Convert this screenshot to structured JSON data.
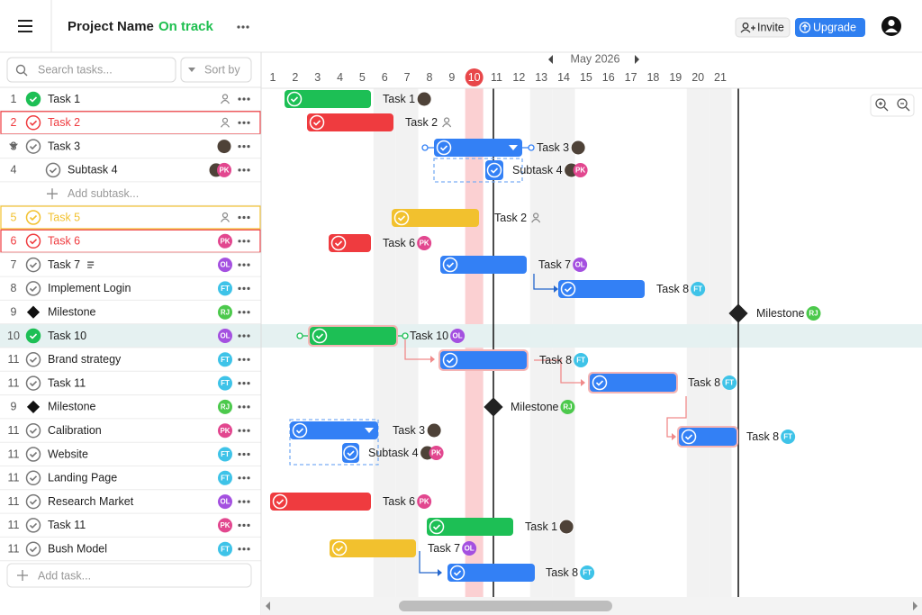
{
  "header": {
    "project_name": "Project Name",
    "status": "On track",
    "invite": "Invite",
    "upgrade": "Upgrade"
  },
  "toolbar": {
    "search_placeholder": "Search tasks...",
    "sort": "Sort by"
  },
  "tasks": [
    {
      "num": 1,
      "name": "Task 1"
    },
    {
      "num": 2,
      "name": "Task 2"
    },
    {
      "num": 3,
      "name": "Task 3"
    },
    {
      "num": 4,
      "name": "Subtask 4",
      "avatar": "PK"
    },
    {
      "name": "Add subtask..."
    },
    {
      "num": 5,
      "name": "Task 5"
    },
    {
      "num": 6,
      "name": "Task 6",
      "avatar": "PK"
    },
    {
      "num": 7,
      "name": "Task 7",
      "avatar": "OL"
    },
    {
      "num": 8,
      "name": "Implement Login",
      "avatar": "FT"
    },
    {
      "num": 9,
      "name": "Milestone",
      "avatar": "RJ"
    },
    {
      "num": 10,
      "name": "Task 10",
      "avatar": "OL"
    },
    {
      "num": 11,
      "name": "Brand strategy",
      "avatar": "FT"
    },
    {
      "num": 11,
      "name": "Task 11",
      "avatar": "FT"
    },
    {
      "num": 9,
      "name": "Milestone",
      "avatar": "RJ"
    },
    {
      "num": 11,
      "name": "Calibration",
      "avatar": "PK"
    },
    {
      "num": 11,
      "name": "Website",
      "avatar": "FT"
    },
    {
      "num": 11,
      "name": "Landing Page",
      "avatar": "FT"
    },
    {
      "num": 11,
      "name": "Research Market",
      "avatar": "OL"
    },
    {
      "num": 11,
      "name": "Task 11",
      "avatar": "PK"
    },
    {
      "num": 11,
      "name": "Bush Model",
      "avatar": "FT"
    }
  ],
  "add_task": "Add task...",
  "timeline": {
    "month": "May 2026",
    "days": [
      1,
      2,
      3,
      4,
      5,
      6,
      7,
      8,
      9,
      10,
      11,
      12,
      13,
      14,
      15,
      16,
      17,
      18,
      19,
      20,
      21
    ],
    "items": [
      {
        "label": "Task 1"
      },
      {
        "label": "Task 2"
      },
      {
        "label": "Task 3"
      },
      {
        "label": "Subtask 4",
        "avatar": "PK"
      },
      {
        "label": "Task 2"
      },
      {
        "label": "Task 6",
        "avatar": "PK"
      },
      {
        "label": "Task 7",
        "avatar": "OL"
      },
      {
        "label": "Task 8",
        "avatar": "FT"
      },
      {
        "label": "Milestone",
        "avatar": "RJ"
      },
      {
        "label": "Task 10",
        "avatar": "OL"
      },
      {
        "label": "Task 8",
        "avatar": "FT"
      },
      {
        "label": "Task 8",
        "avatar": "FT"
      },
      {
        "label": "Milestone",
        "avatar": "RJ"
      },
      {
        "label": "Task 3"
      },
      {
        "label": "Task 8",
        "avatar": "FT"
      },
      {
        "label": "Subtask 4",
        "avatar": "PK"
      },
      {
        "label": "Task 6",
        "avatar": "PK"
      },
      {
        "label": "Task 1"
      },
      {
        "label": "Task 7",
        "avatar": "OL"
      },
      {
        "label": "Task 8",
        "avatar": "FT"
      }
    ]
  }
}
